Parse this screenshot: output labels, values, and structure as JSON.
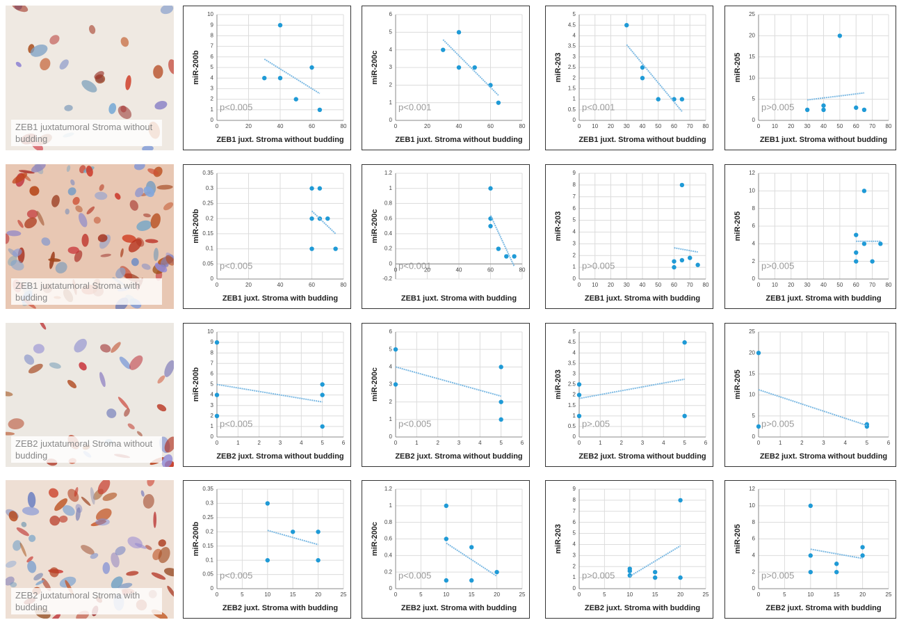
{
  "images": [
    {
      "caption": "ZEB1 juxtatumoral Stroma without budding"
    },
    {
      "caption": "ZEB1 juxtatumoral Stroma with budding"
    },
    {
      "caption": "ZEB2 juxtatumoral Stroma without budding"
    },
    {
      "caption": "ZEB2 juxtatumoral Stroma with budding"
    }
  ],
  "chart_data": [
    {
      "type": "scatter",
      "x_label": "ZEB1 juxt. Stroma without budding",
      "y_label": "miR-200b",
      "annotation": "p<0.005",
      "color": "#1f9ad6",
      "grid": true,
      "trendline": true,
      "x": [
        30,
        40,
        40,
        50,
        60,
        65
      ],
      "values": [
        4,
        9,
        4,
        2,
        5,
        1
      ],
      "xlim": [
        0,
        80
      ],
      "xticks": [
        0,
        20,
        40,
        60,
        80
      ],
      "ylim": [
        0,
        10
      ],
      "yticks": [
        0,
        1,
        2,
        3,
        4,
        5,
        6,
        7,
        8,
        9,
        10
      ]
    },
    {
      "type": "scatter",
      "x_label": "ZEB1 juxt. Stroma without budding",
      "y_label": "miR-200c",
      "annotation": "p<0.001",
      "color": "#1f9ad6",
      "grid": true,
      "trendline": true,
      "x": [
        30,
        40,
        40,
        50,
        60,
        65
      ],
      "values": [
        4,
        5,
        3,
        3,
        2,
        1
      ],
      "xlim": [
        0,
        80
      ],
      "xticks": [
        0,
        20,
        40,
        60,
        80
      ],
      "ylim": [
        0,
        6
      ],
      "yticks": [
        0,
        1,
        2,
        3,
        4,
        5,
        6
      ]
    },
    {
      "type": "scatter",
      "x_label": "ZEB1 juxt. Stroma without budding",
      "y_label": "miR-203",
      "annotation": "p<0.001",
      "color": "#1f9ad6",
      "grid": true,
      "trendline": true,
      "x": [
        30,
        40,
        40,
        50,
        60,
        65
      ],
      "values": [
        4.5,
        2.5,
        2,
        1,
        1,
        1
      ],
      "xlim": [
        0,
        80
      ],
      "xticks": [
        0,
        10,
        20,
        30,
        40,
        50,
        60,
        70,
        80
      ],
      "ylim": [
        0,
        5
      ],
      "yticks": [
        0,
        0.5,
        1,
        1.5,
        2,
        2.5,
        3,
        3.5,
        4,
        4.5,
        5
      ]
    },
    {
      "type": "scatter",
      "x_label": "ZEB1 juxt. Stroma without budding",
      "y_label": "miR-205",
      "annotation": "p>0.005",
      "color": "#1f9ad6",
      "grid": true,
      "trendline": true,
      "x": [
        30,
        40,
        40,
        50,
        60,
        65
      ],
      "values": [
        2.5,
        3.5,
        2.5,
        20,
        3,
        2.5
      ],
      "xlim": [
        0,
        80
      ],
      "xticks": [
        0,
        10,
        20,
        30,
        40,
        50,
        60,
        70,
        80
      ],
      "ylim": [
        0,
        25
      ],
      "yticks": [
        0,
        5,
        10,
        15,
        20,
        25
      ]
    },
    {
      "type": "scatter",
      "x_label": "ZEB1 juxt. Stroma with budding",
      "y_label": "miR-200b",
      "annotation": "p<0.005",
      "color": "#1f9ad6",
      "grid": true,
      "trendline": true,
      "x": [
        60,
        65,
        60,
        65,
        70,
        60,
        75
      ],
      "values": [
        0.3,
        0.3,
        0.2,
        0.2,
        0.2,
        0.1,
        0.1
      ],
      "xlim": [
        0,
        80
      ],
      "xticks": [
        0,
        20,
        40,
        60,
        80
      ],
      "ylim": [
        0,
        0.35
      ],
      "yticks": [
        0,
        0.05,
        0.1,
        0.15,
        0.2,
        0.25,
        0.3,
        0.35
      ]
    },
    {
      "type": "scatter",
      "x_label": "ZEB1 juxt. Stroma with budding",
      "y_label": "miR-200c",
      "annotation": "p<0.001",
      "color": "#1f9ad6",
      "grid": true,
      "trendline": true,
      "x": [
        60,
        60,
        60,
        65,
        70,
        75
      ],
      "values": [
        1,
        0.6,
        0.5,
        0.2,
        0.1,
        0.1
      ],
      "xlim": [
        0,
        80
      ],
      "xticks": [
        0,
        20,
        40,
        60,
        80
      ],
      "ylim": [
        -0.2,
        1.2
      ],
      "yticks": [
        -0.2,
        0,
        0.2,
        0.4,
        0.6,
        0.8,
        1,
        1.2
      ]
    },
    {
      "type": "scatter",
      "x_label": "ZEB1 juxt. Stroma with budding",
      "y_label": "miR-203",
      "annotation": "p>0.005",
      "color": "#1f9ad6",
      "grid": true,
      "trendline": true,
      "x": [
        65,
        60,
        65,
        70,
        75,
        60
      ],
      "values": [
        8,
        1.5,
        1.6,
        1.8,
        1.2,
        1
      ],
      "xlim": [
        0,
        80
      ],
      "xticks": [
        0,
        10,
        20,
        30,
        40,
        50,
        60,
        70,
        80
      ],
      "ylim": [
        0,
        9
      ],
      "yticks": [
        0,
        1,
        2,
        3,
        4,
        5,
        6,
        7,
        8,
        9
      ]
    },
    {
      "type": "scatter",
      "x_label": "ZEB1 juxt. Stroma with budding",
      "y_label": "miR-205",
      "annotation": "p>0.005",
      "color": "#1f9ad6",
      "grid": true,
      "trendline": true,
      "x": [
        65,
        60,
        65,
        75,
        60,
        60,
        70
      ],
      "values": [
        10,
        5,
        4,
        4,
        3,
        2,
        2
      ],
      "xlim": [
        0,
        80
      ],
      "xticks": [
        0,
        10,
        20,
        30,
        40,
        50,
        60,
        70,
        80
      ],
      "ylim": [
        0,
        12
      ],
      "yticks": [
        0,
        2,
        4,
        6,
        8,
        10,
        12
      ]
    },
    {
      "type": "scatter",
      "x_label": "ZEB2 juxt. Stroma without budding",
      "y_label": "miR-200b",
      "annotation": "p<0.005",
      "color": "#1f9ad6",
      "grid": true,
      "trendline": true,
      "x": [
        0,
        0,
        0,
        5,
        5,
        5
      ],
      "values": [
        9,
        4,
        2,
        5,
        4,
        1
      ],
      "xlim": [
        0,
        6
      ],
      "xticks": [
        0,
        1,
        2,
        3,
        4,
        5,
        6
      ],
      "ylim": [
        0,
        10
      ],
      "yticks": [
        0,
        1,
        2,
        3,
        4,
        5,
        6,
        7,
        8,
        9,
        10
      ]
    },
    {
      "type": "scatter",
      "x_label": "ZEB2 juxt. Stroma without budding",
      "y_label": "miR-200c",
      "annotation": "p<0.005",
      "color": "#1f9ad6",
      "grid": true,
      "trendline": true,
      "x": [
        0,
        0,
        5,
        5,
        5
      ],
      "values": [
        5,
        3,
        4,
        2,
        1
      ],
      "xlim": [
        0,
        6
      ],
      "xticks": [
        0,
        1,
        2,
        3,
        4,
        5,
        6
      ],
      "ylim": [
        0,
        6
      ],
      "yticks": [
        0,
        1,
        2,
        3,
        4,
        5,
        6
      ]
    },
    {
      "type": "scatter",
      "x_label": "ZEB2 juxt. Stroma without budding",
      "y_label": "miR-203",
      "annotation": "p>.005",
      "color": "#1f9ad6",
      "grid": true,
      "trendline": true,
      "x": [
        0,
        0,
        0,
        5,
        5
      ],
      "values": [
        2.5,
        2,
        1,
        4.5,
        1
      ],
      "xlim": [
        0,
        6
      ],
      "xticks": [
        0,
        1,
        2,
        3,
        4,
        5,
        6
      ],
      "ylim": [
        0,
        5
      ],
      "yticks": [
        0,
        0.5,
        1,
        1.5,
        2,
        2.5,
        3,
        3.5,
        4,
        4.5,
        5
      ]
    },
    {
      "type": "scatter",
      "x_label": "ZEB2 juxt. Stroma without budding",
      "y_label": "miR-205",
      "annotation": "p>0.005",
      "color": "#1f9ad6",
      "grid": true,
      "trendline": true,
      "x": [
        0,
        0,
        5,
        5
      ],
      "values": [
        20,
        2.5,
        3,
        2.5
      ],
      "xlim": [
        0,
        6
      ],
      "xticks": [
        0,
        1,
        2,
        3,
        4,
        5,
        6
      ],
      "ylim": [
        0,
        25
      ],
      "yticks": [
        0,
        5,
        10,
        15,
        20,
        25
      ]
    },
    {
      "type": "scatter",
      "x_label": "ZEB2 juxt. Stroma with budding",
      "y_label": "miR-200b",
      "annotation": "p<0.005",
      "color": "#1f9ad6",
      "grid": true,
      "trendline": true,
      "x": [
        10,
        10,
        15,
        20,
        20
      ],
      "values": [
        0.3,
        0.1,
        0.2,
        0.2,
        0.1
      ],
      "xlim": [
        0,
        25
      ],
      "xticks": [
        0,
        5,
        10,
        15,
        20,
        25
      ],
      "ylim": [
        0,
        0.35
      ],
      "yticks": [
        0,
        0.05,
        0.1,
        0.15,
        0.2,
        0.25,
        0.3,
        0.35
      ]
    },
    {
      "type": "scatter",
      "x_label": "ZEB2 juxt. Stroma with budding",
      "y_label": "miR-200c",
      "annotation": "p<0.005",
      "color": "#1f9ad6",
      "grid": true,
      "trendline": true,
      "x": [
        10,
        10,
        10,
        15,
        15,
        20
      ],
      "values": [
        1,
        0.6,
        0.1,
        0.5,
        0.1,
        0.2
      ],
      "xlim": [
        0,
        25
      ],
      "xticks": [
        0,
        5,
        10,
        15,
        20,
        25
      ],
      "ylim": [
        0,
        1.2
      ],
      "yticks": [
        0,
        0.2,
        0.4,
        0.6,
        0.8,
        1,
        1.2
      ]
    },
    {
      "type": "scatter",
      "x_label": "ZEB2 juxt. Stroma with budding",
      "y_label": "miR-203",
      "annotation": "p>0.005",
      "color": "#1f9ad6",
      "grid": true,
      "trendline": true,
      "x": [
        10,
        10,
        10,
        15,
        15,
        20,
        20
      ],
      "values": [
        1.8,
        1.6,
        1.2,
        1.5,
        1,
        8,
        1
      ],
      "xlim": [
        0,
        25
      ],
      "xticks": [
        0,
        5,
        10,
        15,
        20,
        25
      ],
      "ylim": [
        0,
        9
      ],
      "yticks": [
        0,
        1,
        2,
        3,
        4,
        5,
        6,
        7,
        8,
        9
      ]
    },
    {
      "type": "scatter",
      "x_label": "ZEB2 juxt. Stroma with budding",
      "y_label": "miR-205",
      "annotation": "p>0.005",
      "color": "#1f9ad6",
      "grid": true,
      "trendline": true,
      "x": [
        10,
        10,
        10,
        15,
        15,
        20,
        20
      ],
      "values": [
        10,
        4,
        2,
        3,
        2,
        5,
        4
      ],
      "xlim": [
        0,
        25
      ],
      "xticks": [
        0,
        5,
        10,
        15,
        20,
        25
      ],
      "ylim": [
        0,
        12
      ],
      "yticks": [
        0,
        2,
        4,
        6,
        8,
        10,
        12
      ]
    }
  ]
}
